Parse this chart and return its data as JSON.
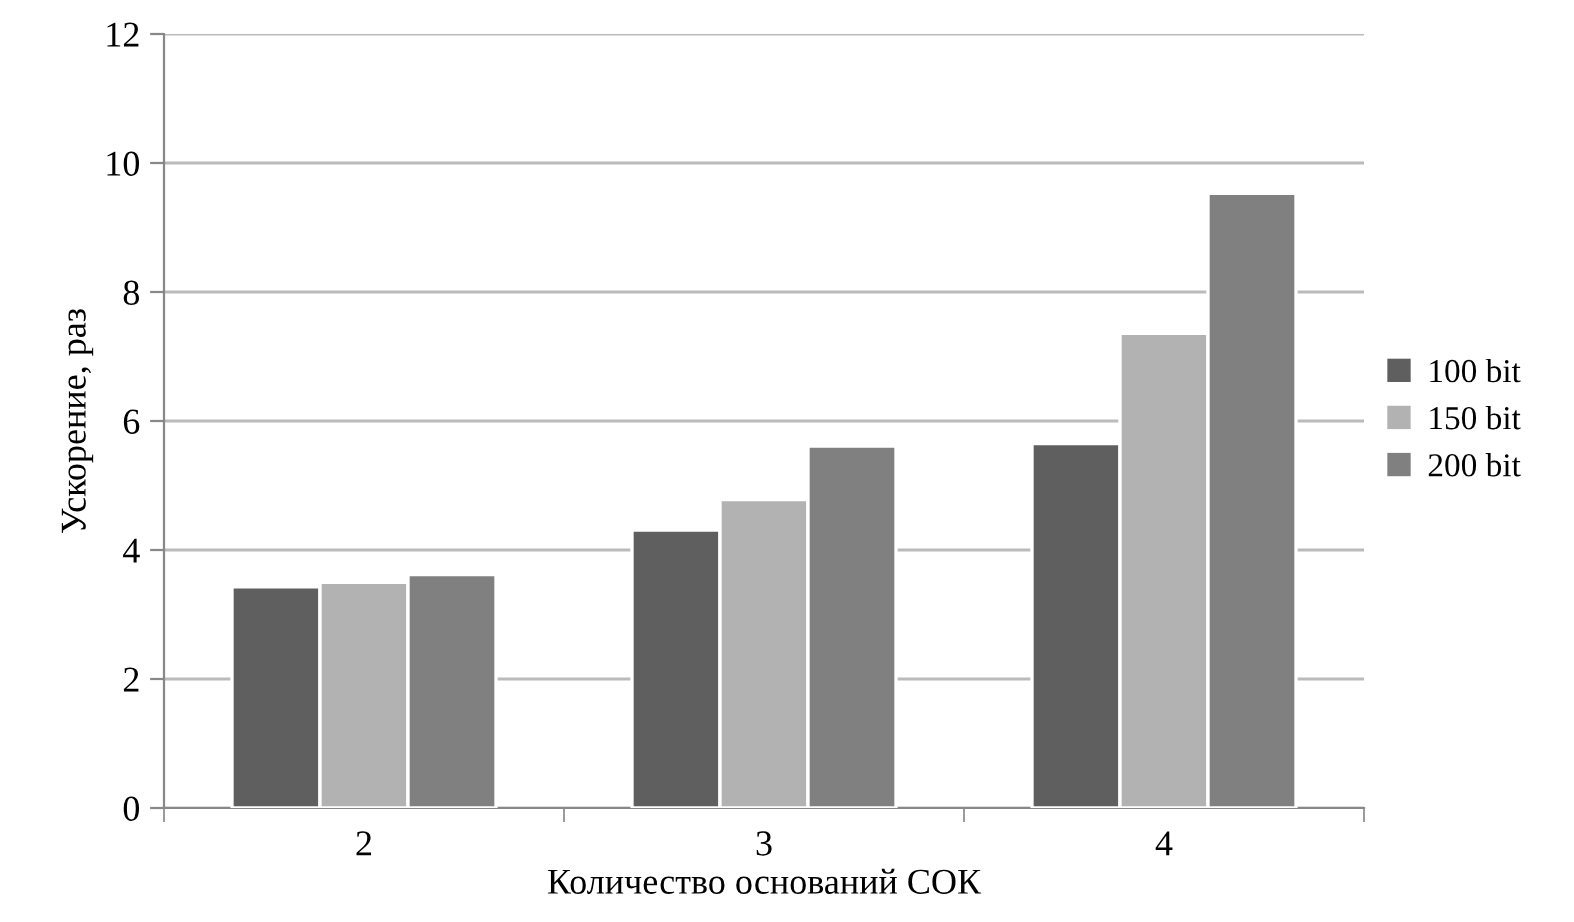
{
  "chart_data": {
    "type": "bar",
    "xlabel": "Количество оснований СОК",
    "ylabel": "Ускорение, раз",
    "categories": [
      "2",
      "3",
      "4"
    ],
    "series": [
      {
        "name": "100 bit",
        "color": "#5f5f5f",
        "values": [
          3.43,
          4.31,
          5.65
        ]
      },
      {
        "name": "150 bit",
        "color": "#b2b2b2",
        "values": [
          3.5,
          4.78,
          7.36
        ]
      },
      {
        "name": "200 bit",
        "color": "#808080",
        "values": [
          3.62,
          5.61,
          9.53
        ]
      }
    ],
    "ylim": [
      0,
      12
    ],
    "yticks": [
      0,
      2,
      4,
      6,
      8,
      10,
      12
    ],
    "grid": "y",
    "legend": "right"
  }
}
